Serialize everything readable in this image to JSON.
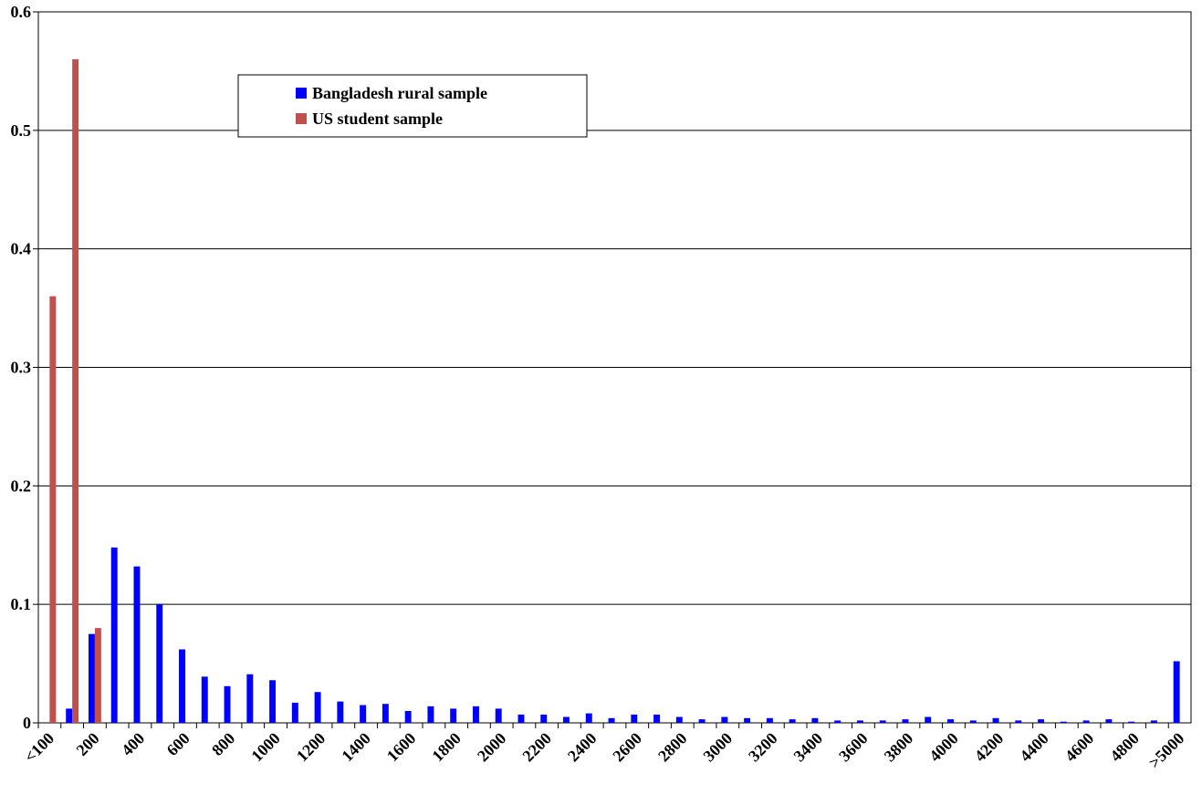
{
  "chart_data": {
    "type": "bar",
    "categories": [
      "<100",
      null,
      "200",
      null,
      "400",
      null,
      "600",
      null,
      "800",
      null,
      "1000",
      null,
      "1200",
      null,
      "1400",
      null,
      "1600",
      null,
      "1800",
      null,
      "2000",
      null,
      "2200",
      null,
      "2400",
      null,
      "2600",
      null,
      "2800",
      null,
      "3000",
      null,
      "3200",
      null,
      "3400",
      null,
      "3600",
      null,
      "3800",
      null,
      "4000",
      null,
      "4200",
      null,
      "4400",
      null,
      "4600",
      null,
      "4800",
      null,
      ">5000"
    ],
    "series": [
      {
        "name": "Bangladesh rural sample",
        "color": "#0000ff",
        "values": [
          0,
          0.012,
          0.075,
          0.148,
          0.132,
          0.1,
          0.062,
          0.039,
          0.031,
          0.041,
          0.036,
          0.017,
          0.026,
          0.018,
          0.015,
          0.016,
          0.01,
          0.014,
          0.012,
          0.014,
          0.012,
          0.007,
          0.007,
          0.005,
          0.008,
          0.004,
          0.007,
          0.007,
          0.005,
          0.003,
          0.005,
          0.004,
          0.004,
          0.003,
          0.004,
          0.002,
          0.002,
          0.002,
          0.003,
          0.005,
          0.003,
          0.002,
          0.004,
          0.002,
          0.003,
          0.001,
          0.002,
          0.003,
          0.001,
          0.002,
          0.052
        ]
      },
      {
        "name": "US student sample",
        "color": "#c0504d",
        "values": [
          0.36,
          0.56,
          0.08,
          0,
          0,
          0,
          0,
          0,
          0,
          0,
          0,
          0,
          0,
          0,
          0,
          0,
          0,
          0,
          0,
          0,
          0,
          0,
          0,
          0,
          0,
          0,
          0,
          0,
          0,
          0,
          0,
          0,
          0,
          0,
          0,
          0,
          0,
          0,
          0,
          0,
          0,
          0,
          0,
          0,
          0,
          0,
          0,
          0,
          0,
          0,
          0
        ]
      }
    ],
    "ylim": [
      0,
      0.6
    ],
    "yticks": [
      0,
      0.1,
      0.2,
      0.3,
      0.4,
      0.5,
      0.6
    ],
    "grid": true
  }
}
